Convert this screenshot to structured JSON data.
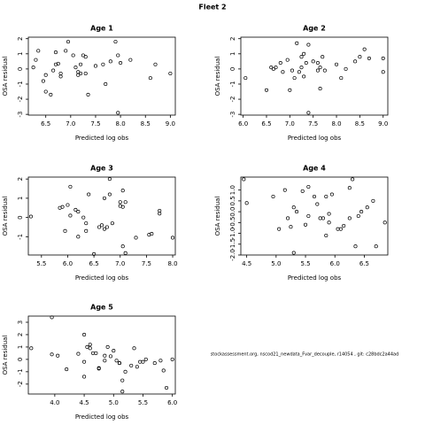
{
  "title": "Fleet 2",
  "annotation": "stockassessment.org, nscod21_newdata_Fvar_decouple, r14054 , git: c28bdc2a44ad",
  "chart_data": [
    {
      "type": "scatter",
      "title": "Age 1",
      "xlabel": "Predicted log obs",
      "ylabel": "OSA residual",
      "xlim": [
        6.15,
        9.1
      ],
      "ylim": [
        -3.05,
        2.1
      ],
      "xticks": [
        6.5,
        {
          "value": 7,
          "label": "7.0"
        },
        7.5,
        {
          "value": 8,
          "label": "8.0"
        },
        8.5,
        {
          "value": 9,
          "label": "9.0"
        }
      ],
      "yticks": [
        -3,
        -2,
        -1,
        0,
        1,
        2
      ],
      "x": [
        6.25,
        6.3,
        6.35,
        6.45,
        6.5,
        6.5,
        6.6,
        6.65,
        6.7,
        6.7,
        6.75,
        6.8,
        6.8,
        6.9,
        6.95,
        7.05,
        7.1,
        7.15,
        7.15,
        7.2,
        7.2,
        7.25,
        7.3,
        7.3,
        7.35,
        7.5,
        7.65,
        7.7,
        7.8,
        7.9,
        7.95,
        7.95,
        8.0,
        8.2,
        8.6,
        8.7,
        9.0
      ],
      "values": [
        0.1,
        0.6,
        1.2,
        -0.8,
        -1.5,
        -0.4,
        -1.7,
        -0.1,
        1.1,
        0.3,
        0.35,
        -0.5,
        -0.3,
        1.2,
        1.8,
        0.9,
        0.1,
        -0.4,
        -0.2,
        0.3,
        -0.3,
        0.9,
        0.8,
        -0.3,
        -1.7,
        0.2,
        0.3,
        -1.0,
        0.5,
        1.8,
        0.9,
        -2.9,
        0.4,
        0.6,
        -0.6,
        0.3,
        -0.3
      ]
    },
    {
      "type": "scatter",
      "title": "Age 2",
      "xlabel": "Predicted log obs",
      "ylabel": "OSA residual",
      "xlim": [
        5.95,
        9.1
      ],
      "ylim": [
        -3.05,
        2.1
      ],
      "xticks": [
        {
          "value": 6,
          "label": "6.0"
        },
        6.5,
        {
          "value": 7,
          "label": "7.0"
        },
        7.5,
        {
          "value": 8,
          "label": "8.0"
        },
        8.5,
        {
          "value": 9,
          "label": "9.0"
        }
      ],
      "yticks": [
        -3,
        -2,
        -1,
        0,
        1,
        2
      ],
      "x": [
        6.05,
        6.5,
        6.6,
        6.65,
        6.7,
        6.8,
        6.85,
        6.95,
        7.0,
        7.05,
        7.1,
        7.15,
        7.2,
        7.25,
        7.25,
        7.3,
        7.3,
        7.35,
        7.4,
        7.4,
        7.5,
        7.6,
        7.6,
        7.65,
        7.65,
        7.7,
        7.75,
        8.0,
        8.1,
        8.2,
        8.4,
        8.5,
        8.6,
        8.7,
        9.0,
        9.0
      ],
      "values": [
        -0.6,
        -1.4,
        0.1,
        0.0,
        0.1,
        0.4,
        -0.2,
        0.6,
        -1.4,
        -0.1,
        -0.6,
        1.7,
        -0.2,
        0.8,
        0.1,
        -0.5,
        1.0,
        0.4,
        1.6,
        -2.9,
        0.5,
        -0.1,
        0.4,
        0.1,
        -1.3,
        0.8,
        -0.1,
        0.3,
        -0.6,
        0.0,
        0.5,
        0.8,
        1.3,
        0.7,
        0.7,
        -0.2
      ]
    },
    {
      "type": "scatter",
      "title": "Age 3",
      "xlabel": "Predicted log obs",
      "ylabel": "OSA residual",
      "xlim": [
        5.25,
        8.05
      ],
      "ylim": [
        -1.95,
        2.1
      ],
      "xticks": [
        5.5,
        {
          "value": 6,
          "label": "6.0"
        },
        6.5,
        {
          "value": 7,
          "label": "7.0"
        },
        7.5,
        {
          "value": 8,
          "label": "8.0"
        }
      ],
      "yticks": [
        -1,
        0,
        1,
        2
      ],
      "x": [
        5.3,
        5.85,
        5.9,
        5.95,
        6.0,
        6.05,
        6.05,
        6.15,
        6.2,
        6.2,
        6.3,
        6.35,
        6.35,
        6.4,
        6.5,
        6.6,
        6.65,
        6.7,
        6.7,
        6.75,
        6.8,
        6.8,
        6.85,
        7.0,
        7.0,
        7.05,
        7.05,
        7.05,
        7.1,
        7.1,
        7.3,
        7.55,
        7.6,
        7.75,
        7.75,
        8.0
      ],
      "values": [
        0.05,
        0.5,
        0.55,
        -0.7,
        0.65,
        1.6,
        0.1,
        0.4,
        -1.0,
        0.3,
        0.0,
        -0.7,
        -0.3,
        1.2,
        -1.9,
        -0.5,
        -0.4,
        -0.6,
        1.0,
        -0.5,
        2.0,
        1.2,
        -0.3,
        0.6,
        0.8,
        0.55,
        -1.5,
        1.4,
        0.8,
        -1.85,
        -1.05,
        -0.9,
        -0.85,
        0.2,
        0.35,
        -1.05
      ]
    },
    {
      "type": "scatter",
      "title": "Age 4",
      "xlabel": "Predicted log obs",
      "ylabel": "OSA residual",
      "xlim": [
        4.4,
        6.9
      ],
      "ylim": [
        -2.0,
        1.6
      ],
      "xticks": [
        4.5,
        {
          "value": 5,
          "label": "5.0"
        },
        5.5,
        {
          "value": 6,
          "label": "6.0"
        },
        6.5
      ],
      "yticks": [
        {
          "value": -2,
          "label": "-2.0"
        },
        -1.5,
        {
          "value": -1,
          "label": "-1.0"
        },
        -0.5,
        {
          "value": 0,
          "label": "0.0"
        },
        0.5,
        {
          "value": 1,
          "label": "1.0"
        }
      ],
      "x": [
        4.45,
        4.5,
        4.95,
        5.05,
        5.15,
        5.2,
        5.25,
        5.3,
        5.3,
        5.35,
        5.45,
        5.5,
        5.55,
        5.55,
        5.65,
        5.7,
        5.75,
        5.8,
        5.85,
        5.85,
        5.9,
        5.9,
        5.95,
        6.05,
        6.1,
        6.15,
        6.25,
        6.25,
        6.3,
        6.35,
        6.4,
        6.45,
        6.55,
        6.65,
        6.7,
        6.85
      ],
      "values": [
        1.5,
        0.4,
        0.7,
        -0.8,
        1.0,
        -0.3,
        -0.7,
        0.2,
        -1.9,
        0.0,
        0.95,
        -0.6,
        -0.2,
        1.15,
        0.7,
        0.35,
        -0.3,
        -0.3,
        -1.1,
        0.7,
        -0.1,
        -0.5,
        0.8,
        -0.8,
        -0.8,
        -0.65,
        -0.3,
        1.1,
        1.5,
        -1.6,
        -0.2,
        0.0,
        0.2,
        0.5,
        -1.6,
        -0.5
      ]
    },
    {
      "type": "scatter",
      "title": "Age 5",
      "xlabel": "Predicted log obs",
      "ylabel": "OSA residual",
      "xlim": [
        3.55,
        6.05
      ],
      "ylim": [
        -2.8,
        3.5
      ],
      "xticks": [
        {
          "value": 4,
          "label": "4.0"
        },
        4.5,
        {
          "value": 5,
          "label": "5.0"
        },
        5.5,
        {
          "value": 6,
          "label": "6.0"
        }
      ],
      "yticks": [
        -2,
        -1,
        0,
        1,
        2,
        3
      ],
      "x": [
        3.6,
        3.95,
        3.95,
        4.05,
        4.2,
        4.4,
        4.5,
        4.5,
        4.5,
        4.55,
        4.6,
        4.6,
        4.65,
        4.7,
        4.75,
        4.75,
        4.85,
        4.85,
        4.9,
        4.95,
        5.0,
        5.05,
        5.1,
        5.1,
        5.15,
        5.15,
        5.2,
        5.3,
        5.35,
        5.4,
        5.45,
        5.5,
        5.55,
        5.7,
        5.8,
        5.85,
        5.9,
        6.0
      ],
      "values": [
        0.9,
        3.4,
        0.4,
        0.3,
        -0.8,
        0.45,
        -1.4,
        2.0,
        -0.2,
        1.0,
        1.2,
        0.9,
        0.5,
        0.5,
        -0.7,
        -0.75,
        0.3,
        -0.1,
        1.0,
        0.25,
        0.7,
        -0.1,
        -0.3,
        -0.3,
        -1.7,
        -2.6,
        -1.0,
        -0.5,
        0.9,
        -0.6,
        -0.2,
        -0.2,
        0.0,
        -0.3,
        -0.1,
        -0.9,
        -2.3,
        0.0
      ]
    }
  ]
}
